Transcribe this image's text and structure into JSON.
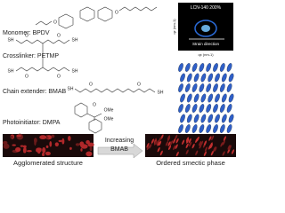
{
  "structures": [
    {
      "label": "Monomer: BPDV",
      "atoms": [
        "O",
        "O"
      ]
    },
    {
      "label": "Crosslinker: PETMP",
      "atoms": [
        "SH",
        "O",
        "O",
        "SH",
        "SH",
        "O",
        "O",
        "SH"
      ]
    },
    {
      "label": "Chain extender: BMAB",
      "atoms": [
        "SH",
        "O",
        "O",
        "SH"
      ]
    },
    {
      "label": "Photoinitiator: DMPA",
      "atoms": [
        "O",
        "OMe",
        "OMe"
      ]
    }
  ],
  "xray": {
    "title": "LCN-140 200%",
    "annotation": "Strain direction",
    "x_label": "qx (nm-1)",
    "y_label": "qz (nm-1)"
  },
  "transition": {
    "arrow_line1": "Increasing",
    "arrow_line2": "BMAB",
    "before": "Agglomerated structure",
    "after": "Ordered smectic phase"
  }
}
